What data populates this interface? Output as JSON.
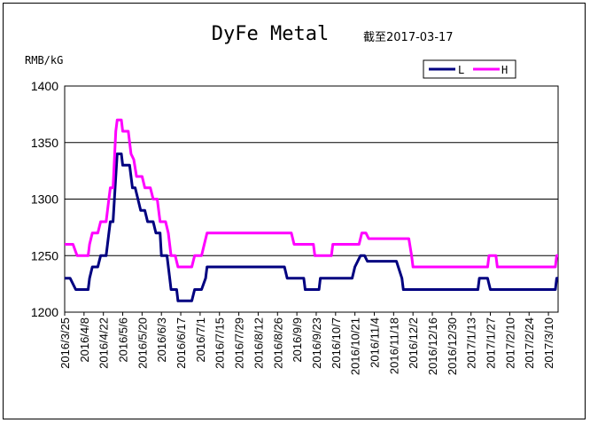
{
  "chart_data": {
    "type": "line",
    "title": "DyFe Metal",
    "subtitle": "截至2017-03-17",
    "ylabel": "RMB/kG",
    "xlabel": "",
    "ylim": [
      1200,
      1400
    ],
    "yticks": [
      1200,
      1250,
      1300,
      1350,
      1400
    ],
    "grid": "horizontal",
    "legend_position": "top-right",
    "x_tick_labels": [
      "2016/3/25",
      "2016/4/8",
      "2016/4/22",
      "2016/5/6",
      "2016/5/20",
      "2016/6/3",
      "2016/6/17",
      "2016/7/1",
      "2016/7/15",
      "2016/7/29",
      "2016/8/12",
      "2016/8/26",
      "2016/9/9",
      "2016/9/23",
      "2016/10/7",
      "2016/10/21",
      "2016/11/4",
      "2016/11/18",
      "2016/12/2",
      "2016/12/16",
      "2016/12/30",
      "2017/1/13",
      "2017/1/27",
      "2017/2/10",
      "2017/2/24",
      "2017/3/10"
    ],
    "x_range": [
      "2016-03-25",
      "2017-03-17"
    ],
    "series": [
      {
        "name": "L",
        "color": "#000080",
        "points": [
          [
            "2016-03-25",
            1230
          ],
          [
            "2016-03-29",
            1230
          ],
          [
            "2016-04-02",
            1220
          ],
          [
            "2016-04-11",
            1220
          ],
          [
            "2016-04-12",
            1230
          ],
          [
            "2016-04-14",
            1240
          ],
          [
            "2016-04-18",
            1240
          ],
          [
            "2016-04-20",
            1250
          ],
          [
            "2016-04-24",
            1250
          ],
          [
            "2016-04-26",
            1270
          ],
          [
            "2016-04-27",
            1280
          ],
          [
            "2016-04-29",
            1280
          ],
          [
            "2016-05-01",
            1320
          ],
          [
            "2016-05-02",
            1340
          ],
          [
            "2016-05-05",
            1340
          ],
          [
            "2016-05-06",
            1330
          ],
          [
            "2016-05-11",
            1330
          ],
          [
            "2016-05-13",
            1310
          ],
          [
            "2016-05-15",
            1310
          ],
          [
            "2016-05-17",
            1300
          ],
          [
            "2016-05-19",
            1290
          ],
          [
            "2016-05-22",
            1290
          ],
          [
            "2016-05-24",
            1280
          ],
          [
            "2016-05-28",
            1280
          ],
          [
            "2016-05-30",
            1270
          ],
          [
            "2016-06-02",
            1270
          ],
          [
            "2016-06-03",
            1250
          ],
          [
            "2016-06-07",
            1250
          ],
          [
            "2016-06-09",
            1230
          ],
          [
            "2016-06-10",
            1220
          ],
          [
            "2016-06-14",
            1220
          ],
          [
            "2016-06-15",
            1210
          ],
          [
            "2016-06-25",
            1210
          ],
          [
            "2016-06-27",
            1220
          ],
          [
            "2016-07-02",
            1220
          ],
          [
            "2016-07-05",
            1230
          ],
          [
            "2016-07-06",
            1240
          ],
          [
            "2016-08-31",
            1240
          ],
          [
            "2016-09-02",
            1230
          ],
          [
            "2016-09-14",
            1230
          ],
          [
            "2016-09-15",
            1220
          ],
          [
            "2016-09-25",
            1220
          ],
          [
            "2016-09-26",
            1230
          ],
          [
            "2016-10-19",
            1230
          ],
          [
            "2016-10-21",
            1240
          ],
          [
            "2016-10-25",
            1250
          ],
          [
            "2016-10-28",
            1250
          ],
          [
            "2016-10-30",
            1245
          ],
          [
            "2016-11-20",
            1245
          ],
          [
            "2016-11-24",
            1230
          ],
          [
            "2016-11-25",
            1220
          ],
          [
            "2017-01-18",
            1220
          ],
          [
            "2017-01-19",
            1230
          ],
          [
            "2017-01-25",
            1230
          ],
          [
            "2017-01-27",
            1220
          ],
          [
            "2017-03-15",
            1220
          ],
          [
            "2017-03-16",
            1230
          ],
          [
            "2017-03-17",
            1230
          ]
        ]
      },
      {
        "name": "H",
        "color": "#ff00ff",
        "points": [
          [
            "2016-03-25",
            1260
          ],
          [
            "2016-03-31",
            1260
          ],
          [
            "2016-04-03",
            1250
          ],
          [
            "2016-04-11",
            1250
          ],
          [
            "2016-04-12",
            1260
          ],
          [
            "2016-04-14",
            1270
          ],
          [
            "2016-04-18",
            1270
          ],
          [
            "2016-04-20",
            1280
          ],
          [
            "2016-04-24",
            1280
          ],
          [
            "2016-04-26",
            1300
          ],
          [
            "2016-04-27",
            1310
          ],
          [
            "2016-04-29",
            1310
          ],
          [
            "2016-05-01",
            1360
          ],
          [
            "2016-05-02",
            1370
          ],
          [
            "2016-05-05",
            1370
          ],
          [
            "2016-05-06",
            1360
          ],
          [
            "2016-05-10",
            1360
          ],
          [
            "2016-05-12",
            1340
          ],
          [
            "2016-05-14",
            1335
          ],
          [
            "2016-05-16",
            1320
          ],
          [
            "2016-05-20",
            1320
          ],
          [
            "2016-05-22",
            1310
          ],
          [
            "2016-05-26",
            1310
          ],
          [
            "2016-05-28",
            1300
          ],
          [
            "2016-05-31",
            1300
          ],
          [
            "2016-06-02",
            1280
          ],
          [
            "2016-06-06",
            1280
          ],
          [
            "2016-06-08",
            1270
          ],
          [
            "2016-06-10",
            1250
          ],
          [
            "2016-06-13",
            1250
          ],
          [
            "2016-06-15",
            1240
          ],
          [
            "2016-06-25",
            1240
          ],
          [
            "2016-06-27",
            1250
          ],
          [
            "2016-07-02",
            1250
          ],
          [
            "2016-07-04",
            1260
          ],
          [
            "2016-07-06",
            1270
          ],
          [
            "2016-09-05",
            1270
          ],
          [
            "2016-09-07",
            1260
          ],
          [
            "2016-09-21",
            1260
          ],
          [
            "2016-09-22",
            1250
          ],
          [
            "2016-10-04",
            1250
          ],
          [
            "2016-10-05",
            1260
          ],
          [
            "2016-10-24",
            1260
          ],
          [
            "2016-10-26",
            1270
          ],
          [
            "2016-10-29",
            1270
          ],
          [
            "2016-10-31",
            1265
          ],
          [
            "2016-11-29",
            1265
          ],
          [
            "2016-12-01",
            1250
          ],
          [
            "2016-12-02",
            1240
          ],
          [
            "2017-01-25",
            1240
          ],
          [
            "2017-01-26",
            1250
          ],
          [
            "2017-01-31",
            1250
          ],
          [
            "2017-02-01",
            1240
          ],
          [
            "2017-03-15",
            1240
          ],
          [
            "2017-03-16",
            1250
          ],
          [
            "2017-03-17",
            1250
          ]
        ]
      }
    ]
  }
}
